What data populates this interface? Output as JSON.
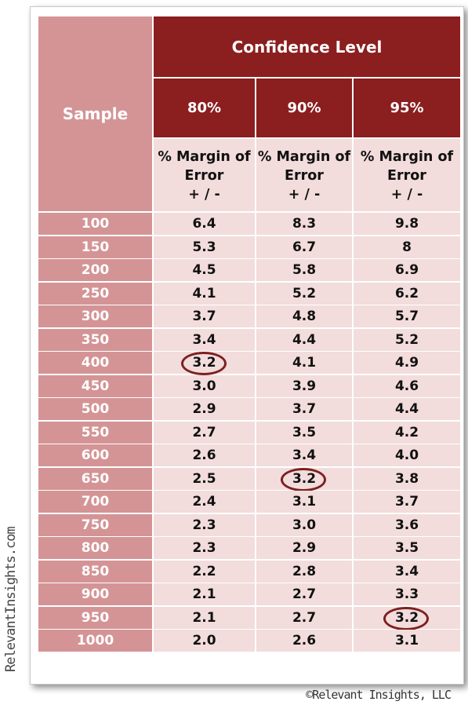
{
  "table": {
    "sample_header": "Sample",
    "confidence_header": "Confidence Level",
    "levels": [
      "80%",
      "90%",
      "95%"
    ],
    "subheader_lines": [
      "% Margin of",
      "Error",
      "+ / -"
    ],
    "rows": [
      {
        "sample": "100",
        "v80": "6.4",
        "v90": "8.3",
        "v95": "9.8"
      },
      {
        "sample": "150",
        "v80": "5.3",
        "v90": "6.7",
        "v95": "8"
      },
      {
        "sample": "200",
        "v80": "4.5",
        "v90": "5.8",
        "v95": "6.9"
      },
      {
        "sample": "250",
        "v80": "4.1",
        "v90": "5.2",
        "v95": "6.2"
      },
      {
        "sample": "300",
        "v80": "3.7",
        "v90": "4.8",
        "v95": "5.7"
      },
      {
        "sample": "350",
        "v80": "3.4",
        "v90": "4.4",
        "v95": "5.2"
      },
      {
        "sample": "400",
        "v80": "3.2",
        "v90": "4.1",
        "v95": "4.9"
      },
      {
        "sample": "450",
        "v80": "3.0",
        "v90": "3.9",
        "v95": "4.6"
      },
      {
        "sample": "500",
        "v80": "2.9",
        "v90": "3.7",
        "v95": "4.4"
      },
      {
        "sample": "550",
        "v80": "2.7",
        "v90": "3.5",
        "v95": "4.2"
      },
      {
        "sample": "600",
        "v80": "2.6",
        "v90": "3.4",
        "v95": "4.0"
      },
      {
        "sample": "650",
        "v80": "2.5",
        "v90": "3.2",
        "v95": "3.8"
      },
      {
        "sample": "700",
        "v80": "2.4",
        "v90": "3.1",
        "v95": "3.7"
      },
      {
        "sample": "750",
        "v80": "2.3",
        "v90": "3.0",
        "v95": "3.6"
      },
      {
        "sample": "800",
        "v80": "2.3",
        "v90": "2.9",
        "v95": "3.5"
      },
      {
        "sample": "850",
        "v80": "2.2",
        "v90": "2.8",
        "v95": "3.4"
      },
      {
        "sample": "900",
        "v80": "2.1",
        "v90": "2.7",
        "v95": "3.3"
      },
      {
        "sample": "950",
        "v80": "2.1",
        "v90": "2.7",
        "v95": "3.2"
      },
      {
        "sample": "1000",
        "v80": "2.0",
        "v90": "2.6",
        "v95": "3.1"
      }
    ],
    "highlighted": [
      {
        "sample": "400",
        "level": "80%"
      },
      {
        "sample": "650",
        "level": "90%"
      },
      {
        "sample": "950",
        "level": "95%"
      }
    ]
  },
  "watermark": "RelevantInsights.com",
  "copyright": "©Relevant Insights, LLC",
  "colors": {
    "header_dark": "#8b1e1e",
    "header_light": "#d49496",
    "cell_bg": "#f2dcdc",
    "circle": "#7d2020"
  }
}
